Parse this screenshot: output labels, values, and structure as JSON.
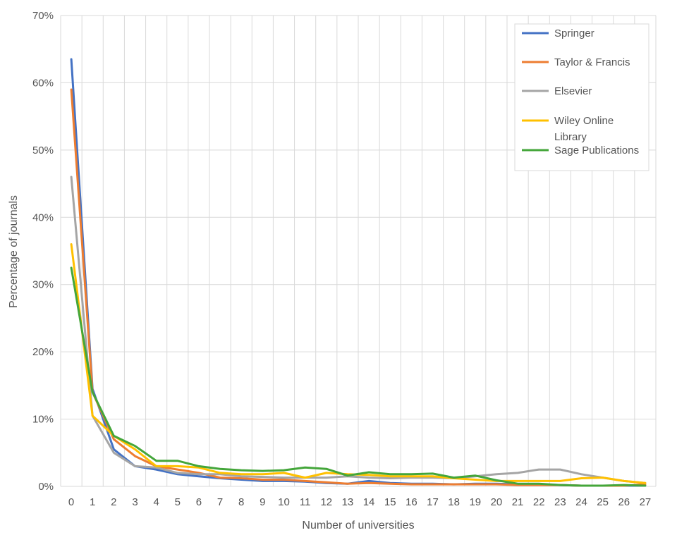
{
  "chart_data": {
    "type": "line",
    "xlabel": "Number of universities",
    "ylabel": "Percentage of journals",
    "x": [
      0,
      1,
      2,
      3,
      4,
      5,
      6,
      7,
      8,
      9,
      10,
      11,
      12,
      13,
      14,
      15,
      16,
      17,
      18,
      19,
      20,
      21,
      22,
      23,
      24,
      25,
      26,
      27
    ],
    "ylim": [
      0,
      70
    ],
    "yticks": [
      0,
      10,
      20,
      30,
      40,
      50,
      60,
      70
    ],
    "ytick_labels": [
      "0%",
      "10%",
      "20%",
      "30%",
      "40%",
      "50%",
      "60%",
      "70%"
    ],
    "grid": true,
    "legend_position": "top-right",
    "series": [
      {
        "name": "Springer",
        "color": "#4472c4",
        "values": [
          63.5,
          14.5,
          5.5,
          3.0,
          2.5,
          1.8,
          1.5,
          1.2,
          1.0,
          0.8,
          0.8,
          0.7,
          0.5,
          0.4,
          0.8,
          0.5,
          0.4,
          0.4,
          0.3,
          0.4,
          0.4,
          0.3,
          0.3,
          0.2,
          0.1,
          0.1,
          0.1,
          0.1
        ]
      },
      {
        "name": "Taylor & Francis",
        "color": "#ed7d31",
        "values": [
          59.0,
          14.0,
          7.0,
          4.5,
          3.0,
          2.5,
          2.0,
          1.3,
          1.2,
          1.0,
          1.0,
          0.8,
          0.6,
          0.4,
          0.5,
          0.4,
          0.3,
          0.3,
          0.3,
          0.3,
          0.3,
          0.2,
          0.2,
          0.2,
          0.1,
          0.1,
          0.1,
          0.3
        ]
      },
      {
        "name": "Elsevier",
        "color": "#a5a5a5",
        "values": [
          46.0,
          10.5,
          5.0,
          3.0,
          2.8,
          2.0,
          1.8,
          1.8,
          1.5,
          1.4,
          1.3,
          1.3,
          1.3,
          1.5,
          1.3,
          1.2,
          1.3,
          1.3,
          1.2,
          1.5,
          1.8,
          2.0,
          2.5,
          2.5,
          1.8,
          1.3,
          0.8,
          0.5
        ]
      },
      {
        "name": "Wiley Online Library",
        "color": "#ffc000",
        "values": [
          36.0,
          10.5,
          7.5,
          5.5,
          3.0,
          3.0,
          2.8,
          2.0,
          1.8,
          1.8,
          2.0,
          1.3,
          2.0,
          1.8,
          1.7,
          1.5,
          1.5,
          1.5,
          1.2,
          1.0,
          0.8,
          0.8,
          0.8,
          0.8,
          1.2,
          1.3,
          0.8,
          0.5
        ]
      },
      {
        "name": "Sage Publications",
        "color": "#44a63a",
        "values": [
          32.5,
          14.0,
          7.5,
          6.0,
          3.8,
          3.8,
          3.0,
          2.6,
          2.4,
          2.3,
          2.4,
          2.8,
          2.6,
          1.6,
          2.1,
          1.8,
          1.8,
          1.9,
          1.3,
          1.6,
          0.9,
          0.4,
          0.4,
          0.2,
          0.1,
          0.1,
          0.2,
          0.1
        ]
      }
    ]
  }
}
